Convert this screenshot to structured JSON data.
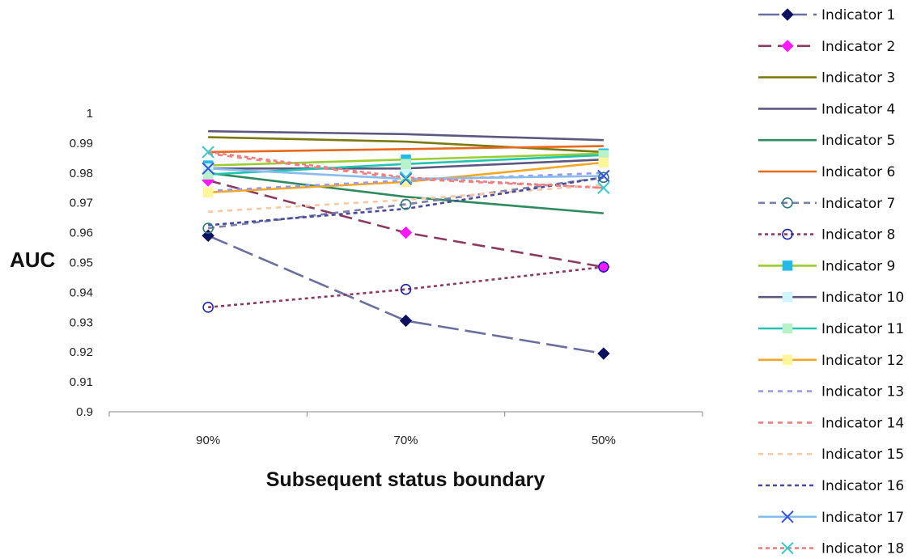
{
  "chart_data": {
    "type": "line",
    "xlabel": "Subsequent status boundary",
    "ylabel": "AUC",
    "ylim": [
      0.9,
      1.0
    ],
    "yticks": [
      "0.9",
      "0.91",
      "0.92",
      "0.93",
      "0.94",
      "0.95",
      "0.96",
      "0.97",
      "0.98",
      "0.99",
      "1"
    ],
    "categories": [
      "90%",
      "70%",
      "50%"
    ],
    "grid": false,
    "legend_position": "right",
    "series": [
      {
        "name": "Indicator 1",
        "values": [
          0.959,
          0.9305,
          0.9195
        ],
        "color": "#6B6F9E",
        "marker_color": "#0E1060",
        "dash": "26,8",
        "marker": "diamond"
      },
      {
        "name": "Indicator 2",
        "values": [
          0.9775,
          0.96,
          0.9485
        ],
        "color": "#8B3A62",
        "marker_color": "#FF19FF",
        "dash": "16,8",
        "marker": "diamond"
      },
      {
        "name": "Indicator 3",
        "values": [
          0.992,
          0.9905,
          0.987
        ],
        "color": "#7A7A10",
        "marker_color": "#7A7A10",
        "dash": "",
        "marker": "none"
      },
      {
        "name": "Indicator 4",
        "values": [
          0.994,
          0.993,
          0.991
        ],
        "color": "#5C5880",
        "marker_color": "#5C5880",
        "dash": "",
        "marker": "none"
      },
      {
        "name": "Indicator 5",
        "values": [
          0.98,
          0.972,
          0.9665
        ],
        "color": "#2E8B60",
        "marker_color": "#2E8B60",
        "dash": "",
        "marker": "none"
      },
      {
        "name": "Indicator 6",
        "values": [
          0.987,
          0.988,
          0.989
        ],
        "color": "#E8681C",
        "marker_color": "#E8681C",
        "dash": "",
        "marker": "none"
      },
      {
        "name": "Indicator 7",
        "values": [
          0.9615,
          0.9695,
          0.9785
        ],
        "color": "#7A7EA8",
        "marker_color": "#2F7A7A",
        "dash": "8,6",
        "marker": "circle"
      },
      {
        "name": "Indicator 8",
        "values": [
          0.935,
          0.941,
          0.9485
        ],
        "color": "#8B3A62",
        "marker_color": "#1E22B0",
        "dash": "4,4",
        "marker": "circle"
      },
      {
        "name": "Indicator 9",
        "values": [
          0.9825,
          0.9845,
          0.9865
        ],
        "color": "#9ACD32",
        "marker_color": "#22BBE8",
        "dash": "",
        "marker": "square"
      },
      {
        "name": "Indicator 10",
        "values": [
          0.9815,
          0.9815,
          0.9845
        ],
        "color": "#5C5880",
        "marker_color": "#CFF5FF",
        "dash": "",
        "marker": "square"
      },
      {
        "name": "Indicator 11",
        "values": [
          0.9795,
          0.983,
          0.986
        ],
        "color": "#20C4B0",
        "marker_color": "#B8F2C8",
        "dash": "",
        "marker": "square"
      },
      {
        "name": "Indicator 12",
        "values": [
          0.9735,
          0.977,
          0.9835
        ],
        "color": "#F5A623",
        "marker_color": "#FFF59A",
        "dash": "",
        "marker": "square"
      },
      {
        "name": "Indicator 13",
        "values": [
          0.974,
          0.9775,
          0.98
        ],
        "color": "#9999EE",
        "marker_color": "#9999EE",
        "dash": "6,6",
        "marker": "none"
      },
      {
        "name": "Indicator 14",
        "values": [
          0.9865,
          0.978,
          0.975
        ],
        "color": "#F08080",
        "marker_color": "#F08080",
        "dash": "6,6",
        "marker": "none"
      },
      {
        "name": "Indicator 15",
        "values": [
          0.967,
          0.971,
          0.976
        ],
        "color": "#F8C8A0",
        "marker_color": "#F8C8A0",
        "dash": "6,6",
        "marker": "none"
      },
      {
        "name": "Indicator 16",
        "values": [
          0.9625,
          0.968,
          0.9785
        ],
        "color": "#4A4A9A",
        "marker_color": "#4A4A9A",
        "dash": "5,4",
        "marker": "none"
      },
      {
        "name": "Indicator 17",
        "values": [
          0.9815,
          0.978,
          0.979
        ],
        "color": "#88BBEE",
        "marker_color": "#3355DD",
        "dash": "",
        "marker": "cross"
      },
      {
        "name": "Indicator 18",
        "values": [
          0.987,
          0.9785,
          0.975
        ],
        "color": "#F08080",
        "marker_color": "#33CCCC",
        "dash": "5,4",
        "marker": "cross"
      }
    ]
  }
}
